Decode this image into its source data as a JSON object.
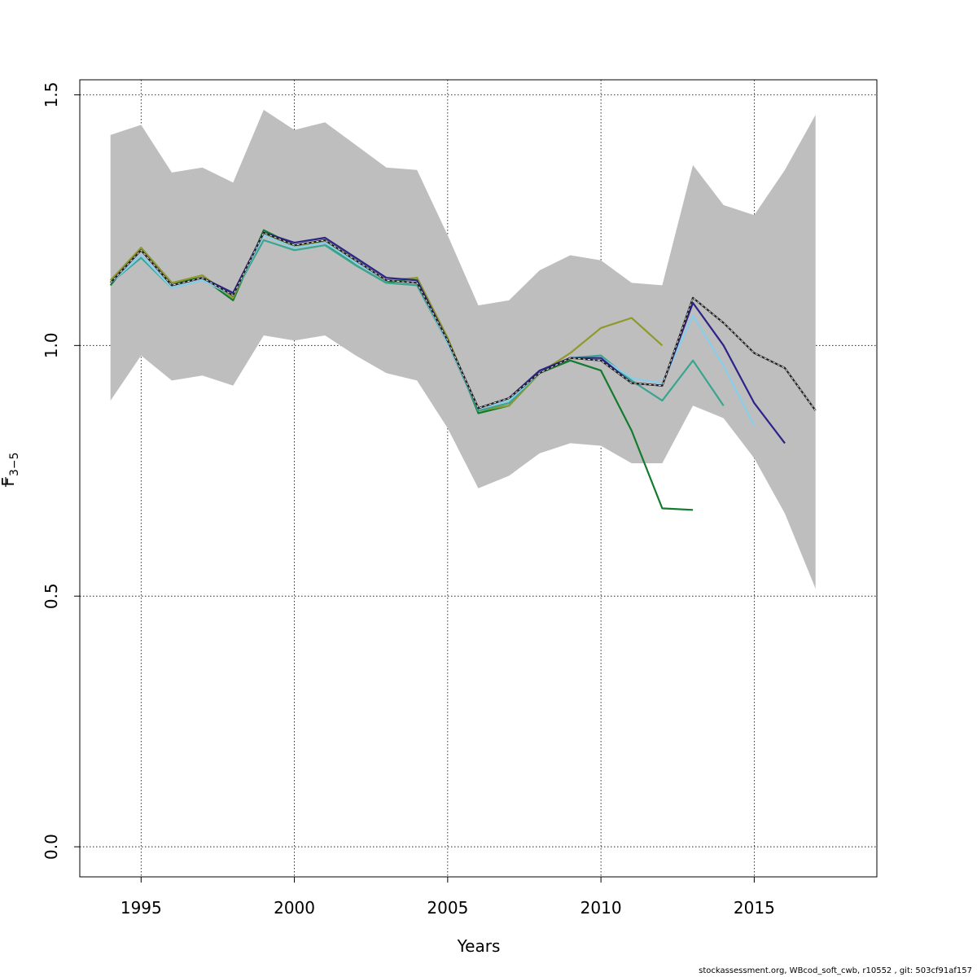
{
  "chart_data": {
    "type": "line",
    "xlabel": "Years",
    "ylabel_main": "F",
    "ylabel_sub": "3−5",
    "xlim": [
      1993,
      2019
    ],
    "ylim": [
      -0.06,
      1.53
    ],
    "xticks": [
      1995,
      2000,
      2005,
      2010,
      2015
    ],
    "yticks": [
      0.0,
      0.5,
      1.0,
      1.5
    ],
    "ytick_labels": [
      "0.0",
      "0.5",
      "1.0",
      "1.5"
    ],
    "grid": true,
    "confidence_band": {
      "color": "#bebebe",
      "x": [
        1994,
        1995,
        1996,
        1997,
        1998,
        1999,
        2000,
        2001,
        2002,
        2003,
        2004,
        2005,
        2006,
        2007,
        2008,
        2009,
        2010,
        2011,
        2012,
        2013,
        2014,
        2015,
        2016,
        2017
      ],
      "upper": [
        1.42,
        1.44,
        1.345,
        1.355,
        1.325,
        1.47,
        1.43,
        1.445,
        1.4,
        1.355,
        1.35,
        1.22,
        1.08,
        1.09,
        1.15,
        1.18,
        1.17,
        1.125,
        1.12,
        1.36,
        1.28,
        1.26,
        1.35,
        1.46
      ],
      "lower": [
        0.89,
        0.98,
        0.93,
        0.94,
        0.92,
        1.02,
        1.01,
        1.02,
        0.98,
        0.945,
        0.93,
        0.835,
        0.715,
        0.74,
        0.785,
        0.805,
        0.8,
        0.765,
        0.765,
        0.88,
        0.855,
        0.775,
        0.665,
        0.515
      ]
    },
    "series": [
      {
        "color": "#222222",
        "dashed": true,
        "x": [
          1994,
          1995,
          1996,
          1997,
          1998,
          1999,
          2000,
          2001,
          2002,
          2003,
          2004,
          2005,
          2006,
          2007,
          2008,
          2009,
          2010,
          2011,
          2012,
          2013,
          2014,
          2015,
          2016,
          2017
        ],
        "y": [
          1.125,
          1.19,
          1.12,
          1.135,
          1.1,
          1.225,
          1.2,
          1.21,
          1.17,
          1.13,
          1.125,
          1.01,
          0.875,
          0.895,
          0.945,
          0.975,
          0.97,
          0.925,
          0.92,
          1.095,
          1.045,
          0.985,
          0.955,
          0.87
        ]
      },
      {
        "color": "#2b2389",
        "x": [
          1994,
          1995,
          1996,
          1997,
          1998,
          1999,
          2000,
          2001,
          2002,
          2003,
          2004,
          2005,
          2006,
          2007,
          2008,
          2009,
          2010,
          2011,
          2012,
          2013,
          2014,
          2015,
          2016
        ],
        "y": [
          1.125,
          1.19,
          1.12,
          1.135,
          1.105,
          1.225,
          1.205,
          1.215,
          1.175,
          1.135,
          1.13,
          1.01,
          0.875,
          0.895,
          0.95,
          0.975,
          0.975,
          0.925,
          0.92,
          1.085,
          1.0,
          0.885,
          0.805
        ]
      },
      {
        "color": "#87ceeb",
        "x": [
          1994,
          1995,
          1996,
          1997,
          1998,
          1999,
          2000,
          2001,
          2002,
          2003,
          2004,
          2005,
          2006,
          2007,
          2008,
          2009,
          2010,
          2011,
          2012,
          2013,
          2014,
          2015
        ],
        "y": [
          1.125,
          1.18,
          1.115,
          1.13,
          1.1,
          1.22,
          1.195,
          1.205,
          1.165,
          1.13,
          1.125,
          1.005,
          0.875,
          0.89,
          0.945,
          0.975,
          0.975,
          0.935,
          0.925,
          1.06,
          0.96,
          0.84
        ]
      },
      {
        "color": "#3aa58f",
        "x": [
          1994,
          1995,
          1996,
          1997,
          1998,
          1999,
          2000,
          2001,
          2002,
          2003,
          2004,
          2005,
          2006,
          2007,
          2008,
          2009,
          2010,
          2011,
          2012,
          2013,
          2014
        ],
        "y": [
          1.125,
          1.175,
          1.115,
          1.13,
          1.1,
          1.21,
          1.19,
          1.2,
          1.16,
          1.125,
          1.12,
          1.005,
          0.87,
          0.885,
          0.945,
          0.975,
          0.98,
          0.93,
          0.89,
          0.97,
          0.88
        ]
      },
      {
        "color": "#8f9a2a",
        "x": [
          1994,
          1995,
          1996,
          1997,
          1998,
          1999,
          2000,
          2001,
          2002,
          2003,
          2004,
          2005,
          2006,
          2007,
          2008,
          2009,
          2010,
          2011,
          2012
        ],
        "y": [
          1.13,
          1.195,
          1.125,
          1.14,
          1.095,
          1.225,
          1.195,
          1.21,
          1.165,
          1.13,
          1.135,
          1.015,
          0.87,
          0.88,
          0.945,
          0.985,
          1.035,
          1.055,
          1.0
        ]
      },
      {
        "color": "#137b2e",
        "x": [
          1994,
          1995,
          1996,
          1997,
          1998,
          1999,
          2000,
          2001,
          2002,
          2003,
          2004,
          2005,
          2006,
          2007,
          2008,
          2009,
          2010,
          2011,
          2012,
          2013
        ],
        "y": [
          1.12,
          1.195,
          1.125,
          1.135,
          1.09,
          1.23,
          1.2,
          1.205,
          1.16,
          1.125,
          1.135,
          1.015,
          0.865,
          0.88,
          0.945,
          0.97,
          0.95,
          0.83,
          0.675,
          0.672
        ]
      }
    ]
  },
  "footer": {
    "credit": "stockassessment.org, WBcod_soft_cwb, r10552 , git: 503cf91af157"
  }
}
